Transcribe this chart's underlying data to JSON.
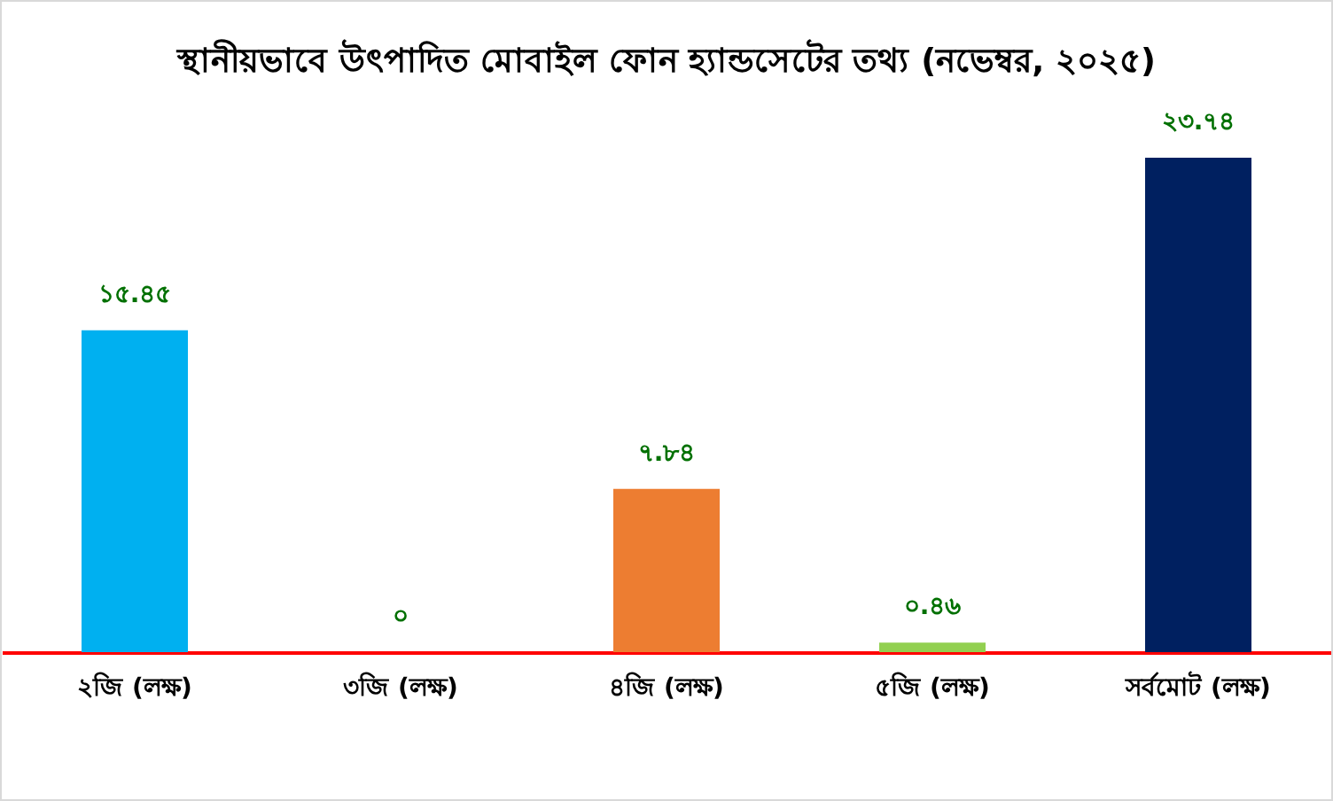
{
  "chart_data": {
    "type": "bar",
    "title": "স্থানীয়ভাবে উৎপাদিত মোবাইল ফোন হ্যান্ডসেটের তথ্য (নভেম্বর, ২০২৫)",
    "categories": [
      "২জি (লক্ষ)",
      "৩জি (লক্ষ)",
      "৪জি (লক্ষ)",
      "৫জি (লক্ষ)",
      "সর্বমোট (লক্ষ)"
    ],
    "values": [
      15.45,
      0,
      7.84,
      0.46,
      23.74
    ],
    "value_labels": [
      "১৫.৪৫",
      "০",
      "৭.৮৪",
      "০.৪৬",
      "২৩.৭৪"
    ],
    "colors": [
      "#00b0f0",
      "#a5a5a5",
      "#ed7d31",
      "#92d050",
      "#002060"
    ]
  }
}
